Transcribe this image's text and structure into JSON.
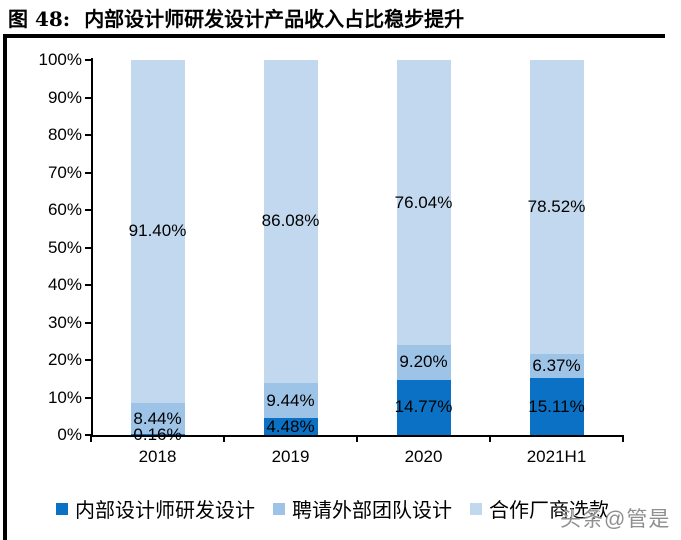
{
  "title": {
    "prefix": "图 48:",
    "text": "内部设计师研发设计产品收入占比稳步提升"
  },
  "watermark": "头条@管是",
  "colors": {
    "series_dark_blue": "#0b71c4",
    "series_medium_blue": "#9dc3e6",
    "series_light_blue": "#c2d8ee",
    "axis": "#000000",
    "watermark_gray": "#8f8f8f"
  },
  "chart_data": {
    "type": "bar",
    "stacked": true,
    "percent_stacked": true,
    "title": "内部设计师研发设计产品收入占比稳步提升",
    "categories": [
      "2018",
      "2019",
      "2020",
      "2021H1"
    ],
    "series": [
      {
        "name": "内部设计师研发设计",
        "color": "#0b71c4",
        "values": [
          0.16,
          4.48,
          14.77,
          15.11
        ],
        "labels": [
          "0.16%",
          "4.48%",
          "14.77%",
          "15.11%"
        ]
      },
      {
        "name": "聘请外部团队设计",
        "color": "#9dc3e6",
        "values": [
          8.44,
          9.44,
          9.2,
          6.37
        ],
        "labels": [
          "8.44%",
          "9.44%",
          "9.20%",
          "6.37%"
        ]
      },
      {
        "name": "合作厂商选款",
        "color": "#c2d8ee",
        "values": [
          91.4,
          86.08,
          76.04,
          78.52
        ],
        "labels": [
          "91.40%",
          "86.08%",
          "76.04%",
          "78.52%"
        ]
      }
    ],
    "y_axis": {
      "min": 0,
      "max": 100,
      "step": 10,
      "tick_labels": [
        "0%",
        "10%",
        "20%",
        "30%",
        "40%",
        "50%",
        "60%",
        "70%",
        "80%",
        "90%",
        "100%"
      ]
    },
    "x_axis": {
      "tick_labels": [
        "2018",
        "2019",
        "2020",
        "2021H1"
      ]
    },
    "grid": false,
    "legend_position": "bottom"
  }
}
